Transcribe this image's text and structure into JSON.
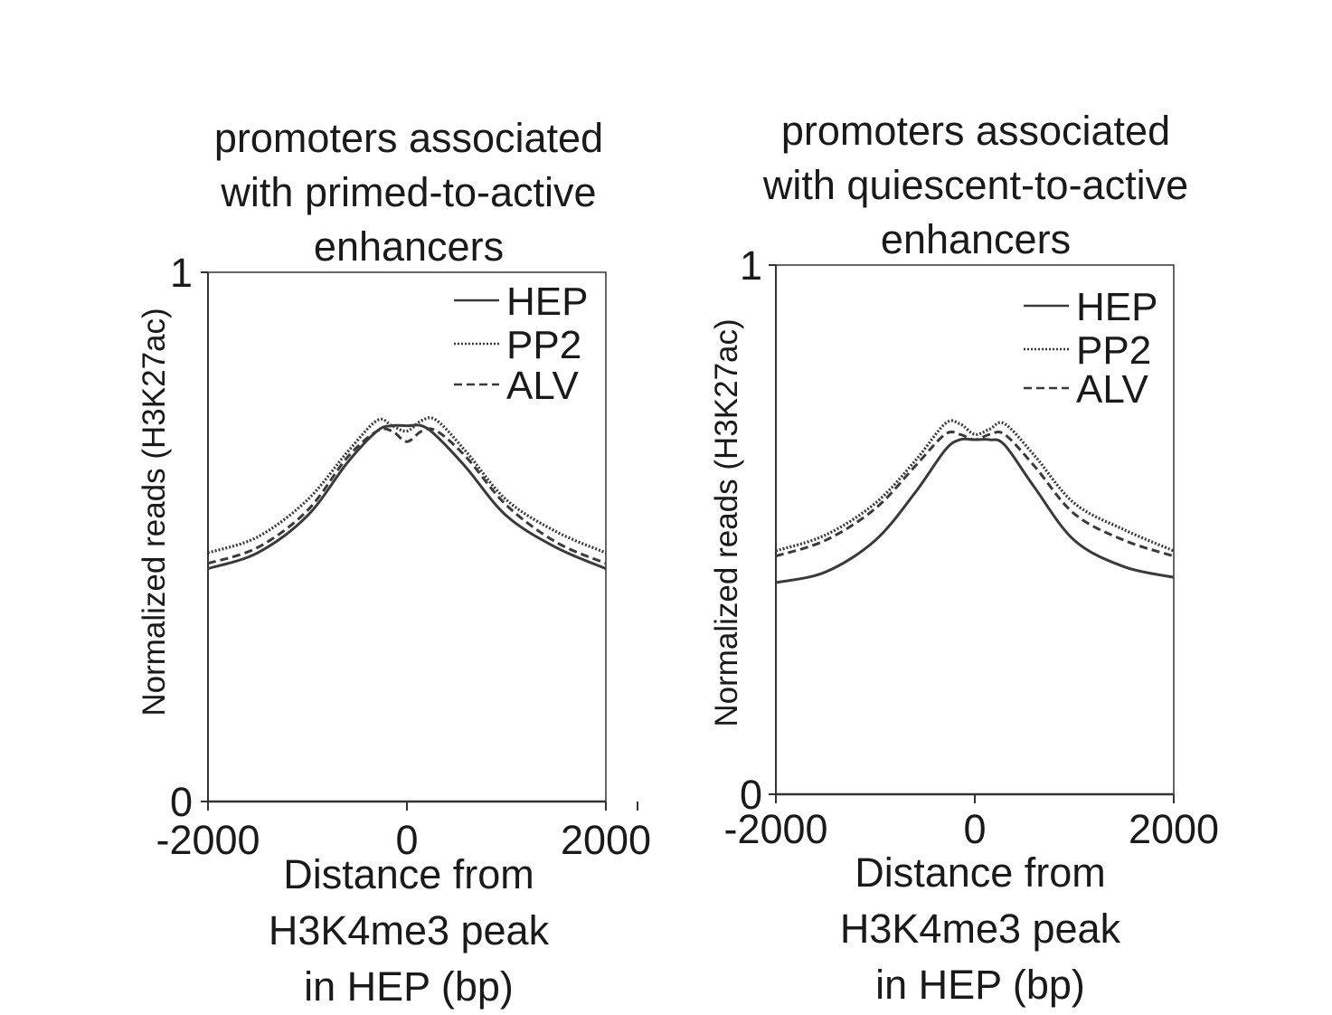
{
  "chart_data": [
    {
      "type": "line",
      "title": [
        "promoters associated",
        "with primed-to-active",
        "enhancers"
      ],
      "xlabel": [
        "Distance from",
        "H3K4me3 peak",
        "in HEP (bp)"
      ],
      "ylabel": "Normalized reads (H3K27ac)",
      "xlim": [
        -2000,
        2000
      ],
      "ylim": [
        0,
        1
      ],
      "x_ticks": [
        "-2000",
        "0",
        "2000"
      ],
      "y_ticks": [
        "0",
        "1"
      ],
      "legend_position": "top-right",
      "x": [
        -2000,
        -1500,
        -1000,
        -600,
        -300,
        -150,
        0,
        150,
        300,
        600,
        1000,
        1500,
        2000
      ],
      "series": [
        {
          "name": "HEP",
          "style": "solid",
          "values": [
            0.44,
            0.47,
            0.54,
            0.64,
            0.7,
            0.71,
            0.71,
            0.71,
            0.69,
            0.63,
            0.54,
            0.48,
            0.44
          ]
        },
        {
          "name": "PP2",
          "style": "dotted",
          "values": [
            0.47,
            0.5,
            0.57,
            0.66,
            0.72,
            0.71,
            0.7,
            0.72,
            0.72,
            0.66,
            0.57,
            0.51,
            0.47
          ]
        },
        {
          "name": "ALV",
          "style": "dashed",
          "values": [
            0.45,
            0.48,
            0.55,
            0.65,
            0.7,
            0.7,
            0.68,
            0.7,
            0.7,
            0.65,
            0.56,
            0.49,
            0.45
          ]
        }
      ]
    },
    {
      "type": "line",
      "title": [
        "promoters associated",
        "with quiescent-to-active",
        "enhancers"
      ],
      "xlabel": [
        "Distance from",
        "H3K4me3 peak",
        "in HEP (bp)"
      ],
      "ylabel": "Normalized reads (H3K27ac)",
      "xlim": [
        -2000,
        2000
      ],
      "ylim": [
        0,
        1
      ],
      "x_ticks": [
        "-2000",
        "0",
        "2000"
      ],
      "y_ticks": [
        "0",
        "1"
      ],
      "legend_position": "top-right",
      "x": [
        -2000,
        -1500,
        -1000,
        -600,
        -300,
        -150,
        0,
        150,
        300,
        600,
        1000,
        1500,
        2000
      ],
      "series": [
        {
          "name": "HEP",
          "style": "solid",
          "values": [
            0.4,
            0.42,
            0.48,
            0.57,
            0.65,
            0.67,
            0.67,
            0.67,
            0.66,
            0.58,
            0.48,
            0.43,
            0.41
          ]
        },
        {
          "name": "PP2",
          "style": "dotted",
          "values": [
            0.46,
            0.49,
            0.55,
            0.63,
            0.7,
            0.7,
            0.68,
            0.69,
            0.7,
            0.64,
            0.55,
            0.5,
            0.46
          ]
        },
        {
          "name": "ALV",
          "style": "dashed",
          "values": [
            0.45,
            0.48,
            0.54,
            0.62,
            0.68,
            0.68,
            0.67,
            0.68,
            0.68,
            0.62,
            0.53,
            0.48,
            0.45
          ]
        }
      ]
    }
  ],
  "colors": {
    "axis": "#333333",
    "line": "#3a3a3a",
    "text": "#1a1a1a"
  }
}
